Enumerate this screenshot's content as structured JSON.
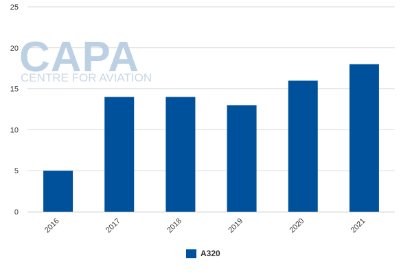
{
  "chart_data": {
    "type": "bar",
    "categories": [
      "2016",
      "2017",
      "2018",
      "2019",
      "2020",
      "2021"
    ],
    "series": [
      {
        "name": "A320",
        "values": [
          5,
          14,
          14,
          13,
          16,
          18
        ],
        "color": "#00519b"
      }
    ],
    "ylim": [
      0,
      25
    ],
    "yticks": [
      0,
      5,
      10,
      15,
      20,
      25
    ],
    "grid": true,
    "legend_position": "bottom-center"
  },
  "watermark": {
    "logo": "CAPA",
    "tagline": "CENTRE FOR AVIATION"
  }
}
